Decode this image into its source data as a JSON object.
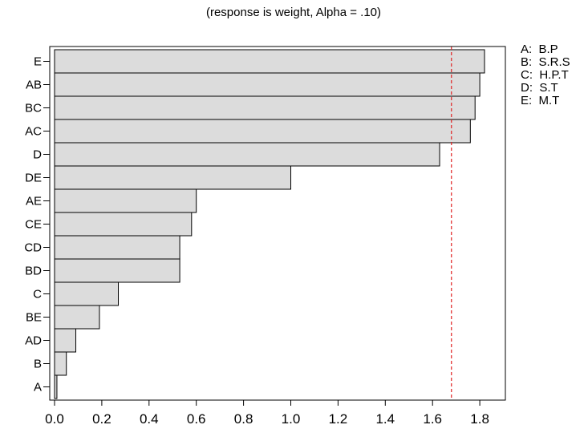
{
  "chart_data": {
    "type": "bar",
    "orientation": "horizontal",
    "subtitle": "(response is weight, Alpha = .10)",
    "categories": [
      "E",
      "AB",
      "BC",
      "AC",
      "D",
      "DE",
      "AE",
      "CE",
      "CD",
      "BD",
      "C",
      "BE",
      "AD",
      "B",
      "A"
    ],
    "values": [
      1.82,
      1.8,
      1.78,
      1.76,
      1.63,
      1.0,
      0.6,
      0.58,
      0.53,
      0.53,
      0.27,
      0.19,
      0.09,
      0.05,
      0.01
    ],
    "reference_line": {
      "value": 1.68,
      "color": "#e02020",
      "style": "dashed"
    },
    "x_ticks": [
      "0.0",
      "0.2",
      "0.4",
      "0.6",
      "0.8",
      "1.0",
      "1.2",
      "1.4",
      "1.6",
      "1.8"
    ],
    "xlim": [
      -0.01,
      1.9
    ],
    "bar_color": "#dcdcdc",
    "legend_position": "top-right",
    "legend": [
      {
        "label": "A:  B.P"
      },
      {
        "label": "B:  S.R.S"
      },
      {
        "label": "C:  H.P.T"
      },
      {
        "label": "D:  S.T"
      },
      {
        "label": "E:  M.T"
      }
    ]
  }
}
